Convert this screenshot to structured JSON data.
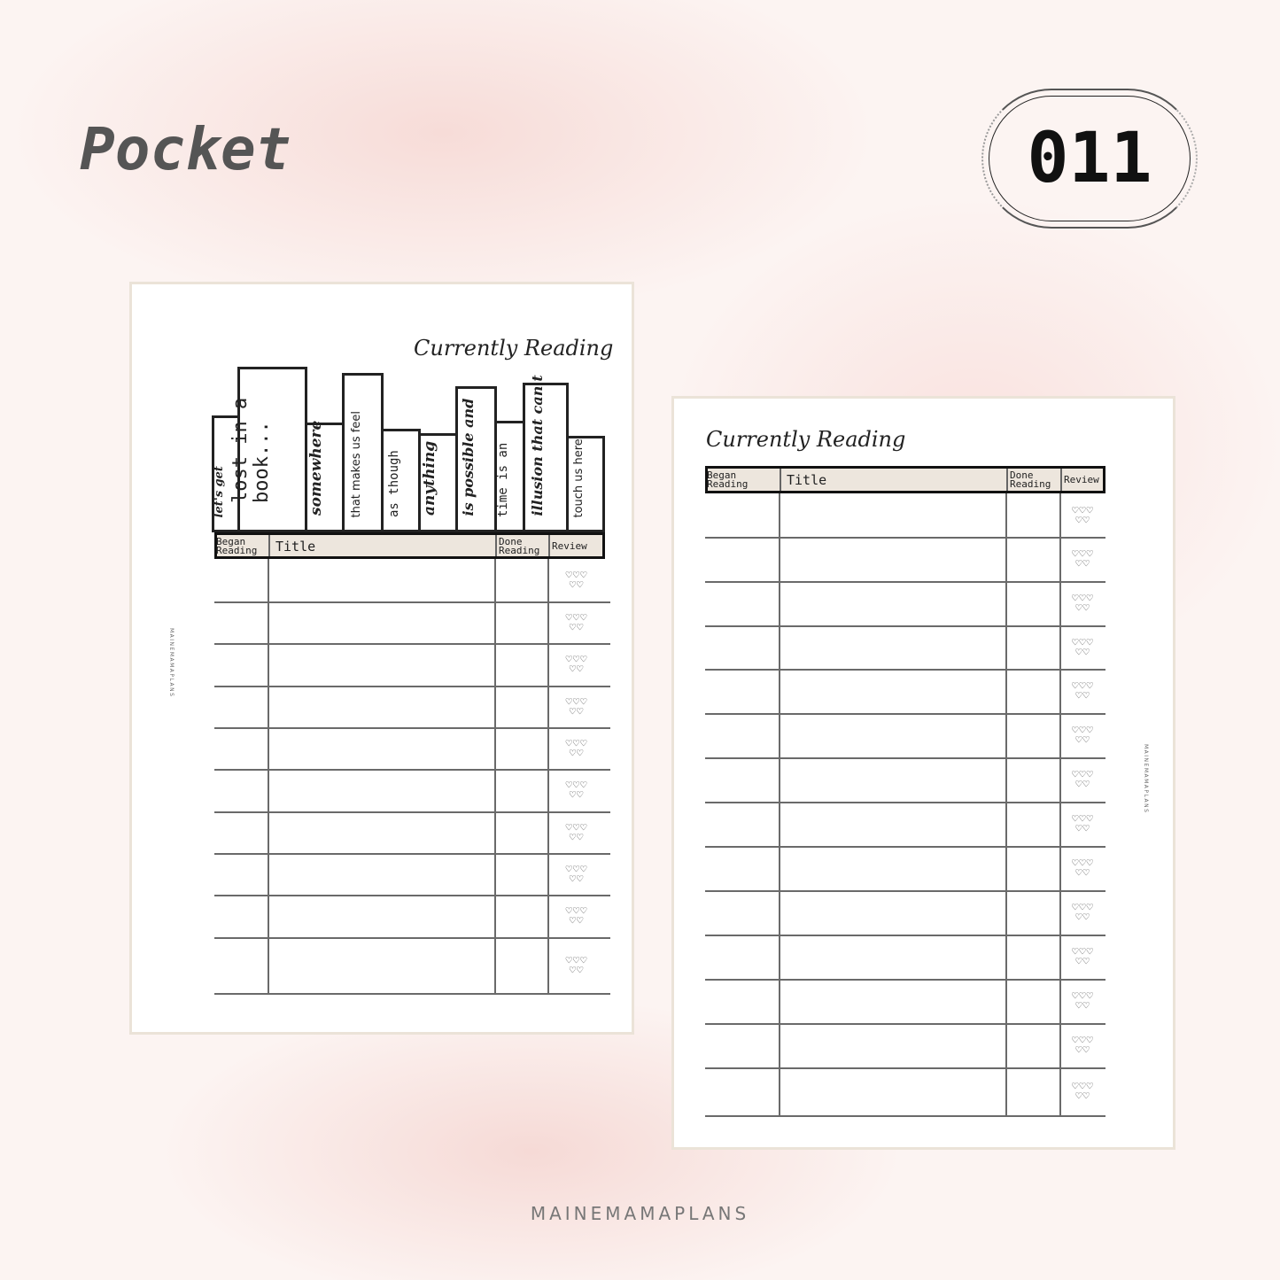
{
  "header": {
    "title": "Pocket",
    "badge": "011"
  },
  "brand": "MAINEMAMAPLANS",
  "left_page": {
    "title": "Currently Reading",
    "spines": [
      "let's get",
      "lost in a book...",
      "somewhere",
      "that makes us feel",
      "as though",
      "anything",
      "is possible and",
      "time is an",
      "illusion that can't",
      "touch us here."
    ],
    "columns": [
      "Began Reading",
      "Title",
      "Done Reading",
      "Review"
    ],
    "row_count": 10,
    "side_text": "MAINEMAMAPLANS",
    "review_icon": "hearts-icon"
  },
  "right_page": {
    "title": "Currently Reading",
    "columns": [
      "Began Reading",
      "Title",
      "Done Reading",
      "Review"
    ],
    "row_count": 14,
    "side_text": "MAINEMAMAPLANS",
    "review_icon": "hearts-icon"
  },
  "colors": {
    "header_fill": "#ede6dd",
    "page_border": "#ebe3d8",
    "grid": "#6a6a6a"
  }
}
